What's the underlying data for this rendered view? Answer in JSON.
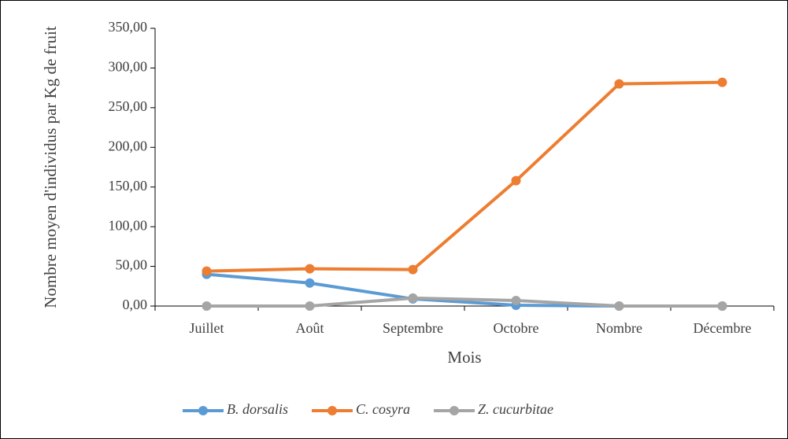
{
  "chart_data": {
    "type": "line",
    "x_label": "Mois",
    "y_label": "Nombre moyen d'individus par Kg de fruit",
    "categories": [
      "Juillet",
      "Août",
      "Septembre",
      "Octobre",
      "Nombre",
      "Décembre"
    ],
    "series": [
      {
        "name": "B. dorsalis",
        "color": "#5b9bd5",
        "values": [
          40,
          29,
          9,
          1,
          0,
          0
        ]
      },
      {
        "name": "C. cosyra",
        "color": "#ed7d31",
        "values": [
          44,
          47,
          46,
          158,
          280,
          282
        ]
      },
      {
        "name": "Z. cucurbitae",
        "color": "#a5a5a5",
        "values": [
          0,
          0,
          10,
          7,
          0,
          0
        ]
      }
    ],
    "ylim": [
      0,
      350
    ],
    "yticks": [
      {
        "value": 0,
        "label": "0,00"
      },
      {
        "value": 50,
        "label": "50,00"
      },
      {
        "value": 100,
        "label": "100,00"
      },
      {
        "value": 150,
        "label": "150,00"
      },
      {
        "value": 200,
        "label": "200,00"
      },
      {
        "value": 250,
        "label": "250,00"
      },
      {
        "value": 300,
        "label": "300,00"
      },
      {
        "value": 350,
        "label": "350,00"
      }
    ],
    "legend": "bottom"
  }
}
